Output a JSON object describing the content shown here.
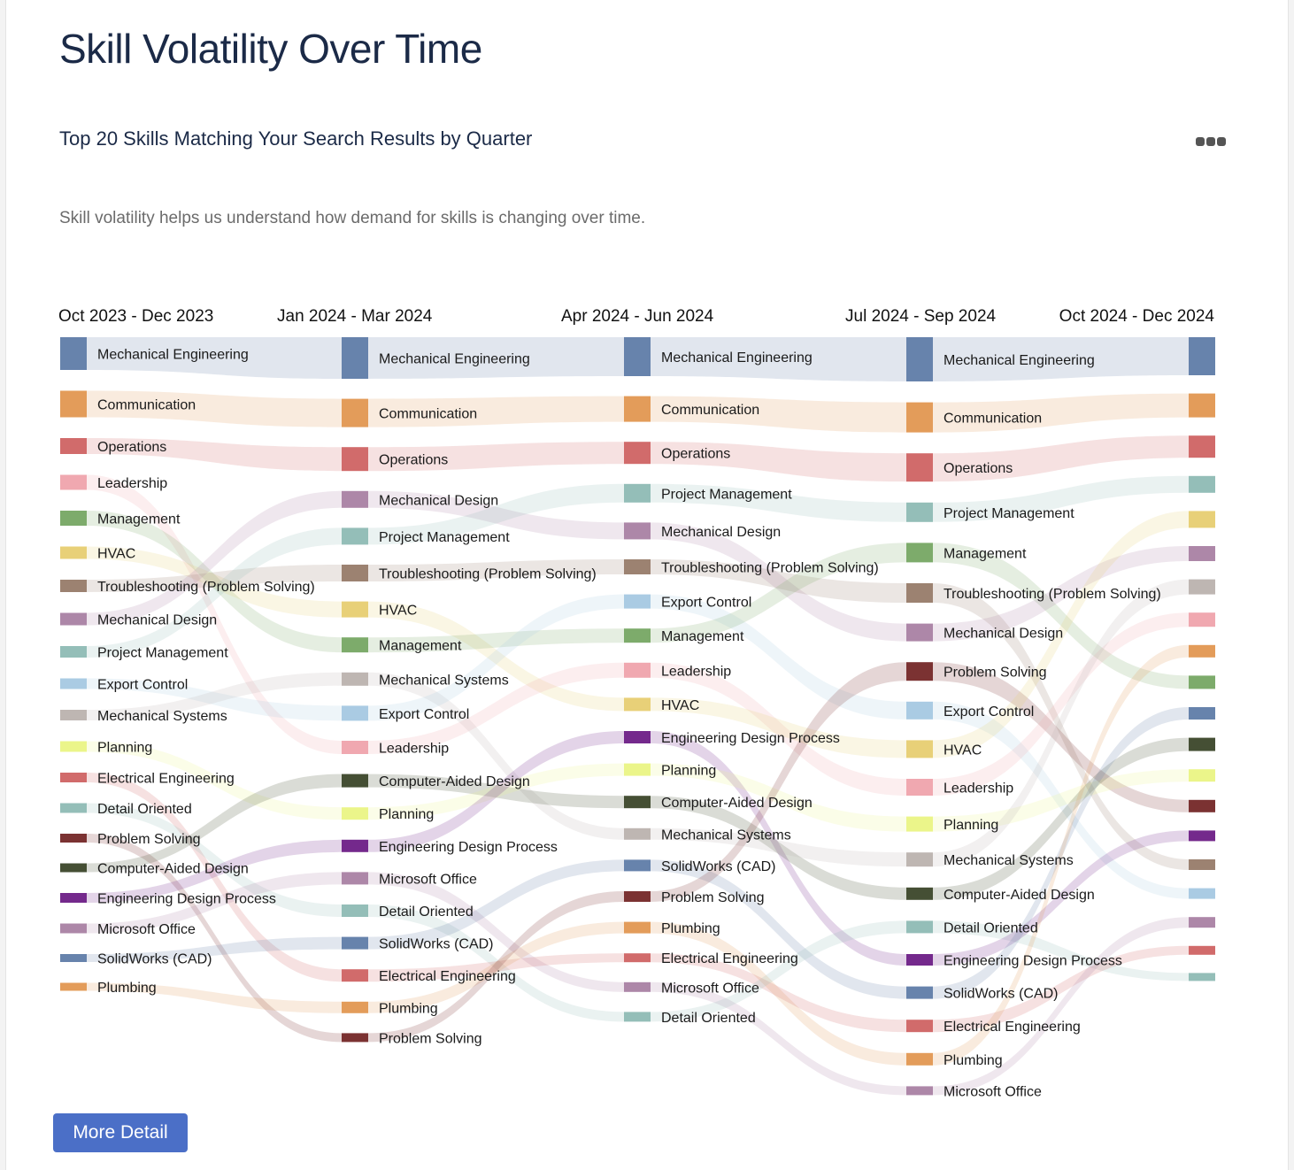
{
  "page": {
    "title": "Skill Volatility Over Time",
    "subtitle": "Top 20 Skills Matching Your Search Results by Quarter",
    "description": "Skill volatility helps us understand how demand for skills is changing over time.",
    "menu_icon": "more-horizontal-icon",
    "more_detail_label": "More Detail"
  },
  "colors": {
    "Mechanical Engineering": "#6783ac",
    "Communication": "#e39c5a",
    "Operations": "#d16b6b",
    "Leadership": "#f0a8b0",
    "Management": "#7dab6b",
    "HVAC": "#e8d078",
    "Troubleshooting (Problem Solving)": "#9c8271",
    "Mechanical Design": "#ad87a8",
    "Project Management": "#94beb8",
    "Export Control": "#aacbe3",
    "Mechanical Systems": "#beb6b2",
    "Planning": "#ebf58a",
    "Electrical Engineering": "#d16b6b",
    "Detail Oriented": "#94beb8",
    "Problem Solving": "#7b3232",
    "Computer-Aided Design": "#454f34",
    "Engineering Design Process": "#74298c",
    "Microsoft Office": "#ad87a8",
    "SolidWorks (CAD)": "#6783ac",
    "Plumbing": "#e39c5a"
  },
  "chart_data": {
    "type": "sankey",
    "title": "Top 20 Skills Matching Your Search Results by Quarter",
    "unit": "relative demand share (estimated from node height)",
    "quarters": [
      "Oct 2023 - Dec 2023",
      "Jan 2024 - Mar 2024",
      "Apr 2024 - Jun 2024",
      "Jul 2024 - Sep 2024",
      "Oct 2024 - Dec 2024"
    ],
    "show_labels": [
      true,
      true,
      true,
      true,
      false
    ],
    "columns": [
      [
        {
          "skill": "Mechanical Engineering",
          "value": 37
        },
        {
          "skill": "Communication",
          "value": 30
        },
        {
          "skill": "Operations",
          "value": 18
        },
        {
          "skill": "Leadership",
          "value": 17
        },
        {
          "skill": "Management",
          "value": 17
        },
        {
          "skill": "HVAC",
          "value": 14
        },
        {
          "skill": "Troubleshooting (Problem Solving)",
          "value": 14
        },
        {
          "skill": "Mechanical Design",
          "value": 14
        },
        {
          "skill": "Project Management",
          "value": 13
        },
        {
          "skill": "Export Control",
          "value": 12
        },
        {
          "skill": "Mechanical Systems",
          "value": 12
        },
        {
          "skill": "Planning",
          "value": 12
        },
        {
          "skill": "Electrical Engineering",
          "value": 11
        },
        {
          "skill": "Detail Oriented",
          "value": 11
        },
        {
          "skill": "Problem Solving",
          "value": 10
        },
        {
          "skill": "Computer-Aided Design",
          "value": 10
        },
        {
          "skill": "Engineering Design Process",
          "value": 11
        },
        {
          "skill": "Microsoft Office",
          "value": 11
        },
        {
          "skill": "SolidWorks (CAD)",
          "value": 9
        },
        {
          "skill": "Plumbing",
          "value": 9
        }
      ],
      [
        {
          "skill": "Mechanical Engineering",
          "value": 47
        },
        {
          "skill": "Communication",
          "value": 32
        },
        {
          "skill": "Operations",
          "value": 27
        },
        {
          "skill": "Mechanical Design",
          "value": 19
        },
        {
          "skill": "Project Management",
          "value": 19
        },
        {
          "skill": "Troubleshooting (Problem Solving)",
          "value": 19
        },
        {
          "skill": "HVAC",
          "value": 18
        },
        {
          "skill": "Management",
          "value": 17
        },
        {
          "skill": "Mechanical Systems",
          "value": 15
        },
        {
          "skill": "Export Control",
          "value": 17
        },
        {
          "skill": "Leadership",
          "value": 15
        },
        {
          "skill": "Computer-Aided Design",
          "value": 15
        },
        {
          "skill": "Planning",
          "value": 14
        },
        {
          "skill": "Engineering Design Process",
          "value": 14
        },
        {
          "skill": "Microsoft Office",
          "value": 14
        },
        {
          "skill": "Detail Oriented",
          "value": 14
        },
        {
          "skill": "SolidWorks (CAD)",
          "value": 14
        },
        {
          "skill": "Electrical Engineering",
          "value": 14
        },
        {
          "skill": "Plumbing",
          "value": 13
        },
        {
          "skill": "Problem Solving",
          "value": 10
        }
      ],
      [
        {
          "skill": "Mechanical Engineering",
          "value": 44
        },
        {
          "skill": "Communication",
          "value": 29
        },
        {
          "skill": "Operations",
          "value": 25
        },
        {
          "skill": "Project Management",
          "value": 21
        },
        {
          "skill": "Mechanical Design",
          "value": 19
        },
        {
          "skill": "Troubleshooting (Problem Solving)",
          "value": 17
        },
        {
          "skill": "Export Control",
          "value": 16
        },
        {
          "skill": "Management",
          "value": 16
        },
        {
          "skill": "Leadership",
          "value": 17
        },
        {
          "skill": "HVAC",
          "value": 15
        },
        {
          "skill": "Engineering Design Process",
          "value": 14
        },
        {
          "skill": "Planning",
          "value": 14
        },
        {
          "skill": "Computer-Aided Design",
          "value": 14
        },
        {
          "skill": "Mechanical Systems",
          "value": 13
        },
        {
          "skill": "SolidWorks (CAD)",
          "value": 13
        },
        {
          "skill": "Problem Solving",
          "value": 12
        },
        {
          "skill": "Plumbing",
          "value": 13
        },
        {
          "skill": "Electrical Engineering",
          "value": 10
        },
        {
          "skill": "Microsoft Office",
          "value": 11
        },
        {
          "skill": "Detail Oriented",
          "value": 11
        }
      ],
      [
        {
          "skill": "Mechanical Engineering",
          "value": 50
        },
        {
          "skill": "Communication",
          "value": 34
        },
        {
          "skill": "Operations",
          "value": 32
        },
        {
          "skill": "Project Management",
          "value": 22
        },
        {
          "skill": "Management",
          "value": 22
        },
        {
          "skill": "Troubleshooting (Problem Solving)",
          "value": 22
        },
        {
          "skill": "Mechanical Design",
          "value": 20
        },
        {
          "skill": "Problem Solving",
          "value": 21
        },
        {
          "skill": "Export Control",
          "value": 20
        },
        {
          "skill": "HVAC",
          "value": 20
        },
        {
          "skill": "Leadership",
          "value": 19
        },
        {
          "skill": "Planning",
          "value": 17
        },
        {
          "skill": "Mechanical Systems",
          "value": 16
        },
        {
          "skill": "Computer-Aided Design",
          "value": 14
        },
        {
          "skill": "Detail Oriented",
          "value": 14
        },
        {
          "skill": "Engineering Design Process",
          "value": 13
        },
        {
          "skill": "SolidWorks (CAD)",
          "value": 14
        },
        {
          "skill": "Electrical Engineering",
          "value": 14
        },
        {
          "skill": "Plumbing",
          "value": 14
        },
        {
          "skill": "Microsoft Office",
          "value": 10
        }
      ],
      [
        {
          "skill": "Mechanical Engineering",
          "value": 43
        },
        {
          "skill": "Communication",
          "value": 27
        },
        {
          "skill": "Operations",
          "value": 25
        },
        {
          "skill": "Project Management",
          "value": 19
        },
        {
          "skill": "HVAC",
          "value": 19
        },
        {
          "skill": "Mechanical Design",
          "value": 17
        },
        {
          "skill": "Mechanical Systems",
          "value": 17
        },
        {
          "skill": "Leadership",
          "value": 16
        },
        {
          "skill": "Plumbing",
          "value": 14
        },
        {
          "skill": "Management",
          "value": 15
        },
        {
          "skill": "SolidWorks (CAD)",
          "value": 14
        },
        {
          "skill": "Computer-Aided Design",
          "value": 15
        },
        {
          "skill": "Planning",
          "value": 14
        },
        {
          "skill": "Problem Solving",
          "value": 14
        },
        {
          "skill": "Engineering Design Process",
          "value": 12
        },
        {
          "skill": "Troubleshooting (Problem Solving)",
          "value": 12
        },
        {
          "skill": "Export Control",
          "value": 12
        },
        {
          "skill": "Microsoft Office",
          "value": 12
        },
        {
          "skill": "Electrical Engineering",
          "value": 10
        },
        {
          "skill": "Detail Oriented",
          "value": 9
        }
      ]
    ]
  }
}
